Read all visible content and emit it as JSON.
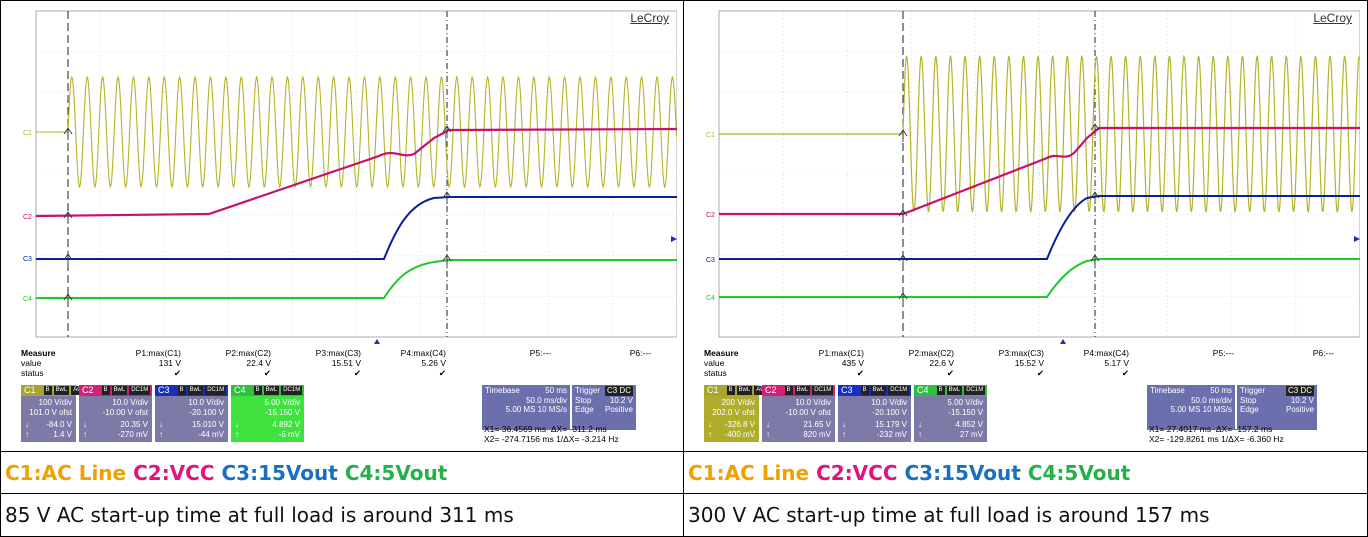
{
  "colors": {
    "c1": "#b5b428",
    "c2": "#c8106e",
    "c3": "#0b1f9a",
    "c4": "#22c82c",
    "legend_c1": "#f0a000",
    "legend_c2": "#e0147c",
    "legend_c3": "#1a6fc0",
    "legend_c4": "#26b04a"
  },
  "legend": {
    "c1": "C1:AC Line",
    "c2": "C2:VCC",
    "c3": "C3:15Vout",
    "c4": "C4:5Vout"
  },
  "panels": [
    {
      "brand": "LeCroy",
      "caption": "85 V AC start-up time at full load is around 311 ms",
      "measure": {
        "label": "Measure",
        "value_label": "value",
        "status_label": "status",
        "headers": [
          "P1:max(C1)",
          "P2:max(C2)",
          "P3:max(C3)",
          "P4:max(C4)",
          "P5:---",
          "P6:---"
        ],
        "values": [
          "131 V",
          "22.4 V",
          "15.51 V",
          "5.26 V",
          "",
          ""
        ],
        "status": [
          "✔",
          "✔",
          "✔",
          "✔",
          "",
          ""
        ]
      },
      "channels": [
        {
          "name": "C1",
          "lines": [
            "100 V/div",
            "101.0 V ofst",
            "-84.0 V",
            "1.4 V"
          ]
        },
        {
          "name": "C2",
          "lines": [
            "10.0 V/div",
            "-10.00 V ofst",
            "20.35 V",
            "-270 mV"
          ]
        },
        {
          "name": "C3",
          "lines": [
            "10.0 V/div",
            "-20.100 V",
            "15.010 V",
            "-44 mV"
          ]
        },
        {
          "name": "C4",
          "lines": [
            "5.00 V/div",
            "-15.150 V",
            "4.892 V",
            "-6 mV"
          ]
        }
      ],
      "channel_tags": [
        "B",
        "BwL",
        "AC",
        "DC1M"
      ],
      "timebase": {
        "label": "Timebase",
        "value": "50 ms",
        "div": "50.0 ms/div",
        "rate": "5.00 MS    10 MS/s"
      },
      "trigger": {
        "label": "Trigger",
        "tag": "C3 DC",
        "mode": "Stop",
        "level": "10.2 V",
        "type": "Edge",
        "slope": "Positive"
      },
      "cursor": {
        "x1": "X1=   36.4569 ms",
        "dx": "ΔX=  -311.2 ms",
        "x2": "X2= -274.7156 ms",
        "inv": "1/ΔX=  -3.214 Hz"
      }
    },
    {
      "brand": "LeCroy",
      "caption": "300 V AC start-up time at full load is around 157 ms",
      "measure": {
        "label": "Measure",
        "value_label": "value",
        "status_label": "status",
        "headers": [
          "P1:max(C1)",
          "P2:max(C2)",
          "P3:max(C3)",
          "P4:max(C4)",
          "P5:---",
          "P6:---"
        ],
        "values": [
          "435 V",
          "22.6 V",
          "15.52 V",
          "5.17 V",
          "",
          ""
        ],
        "status": [
          "✔",
          "✔",
          "✔",
          "✔",
          "",
          ""
        ]
      },
      "channels": [
        {
          "name": "C1",
          "lines": [
            "200 V/div",
            "202.0 V ofst",
            "-326.8 V",
            "-400 mV"
          ]
        },
        {
          "name": "C2",
          "lines": [
            "10.0 V/div",
            "-10.00 V ofst",
            "21.65 V",
            "820 mV"
          ]
        },
        {
          "name": "C3",
          "lines": [
            "10.0 V/div",
            "-20.100 V",
            "15.179 V",
            "-232 mV"
          ]
        },
        {
          "name": "C4",
          "lines": [
            "5.00 V/div",
            "-15.150 V",
            "4.852 V",
            "27 mV"
          ]
        }
      ],
      "channel_tags": [
        "B",
        "BwL",
        "AC",
        "DC1M"
      ],
      "timebase": {
        "label": "Timebase",
        "value": "50 ms",
        "div": "50.0 ms/div",
        "rate": "5.00 MS    10 MS/s"
      },
      "trigger": {
        "label": "Trigger",
        "tag": "C3 DC",
        "mode": "Stop",
        "level": "10.2 V",
        "type": "Edge",
        "slope": "Positive"
      },
      "cursor": {
        "x1": "X1=   27.4017 ms",
        "dx": "ΔX=  -157.2 ms",
        "x2": "X2= -129.8261 ms",
        "inv": "1/ΔX=  -6.360 Hz"
      }
    }
  ]
}
